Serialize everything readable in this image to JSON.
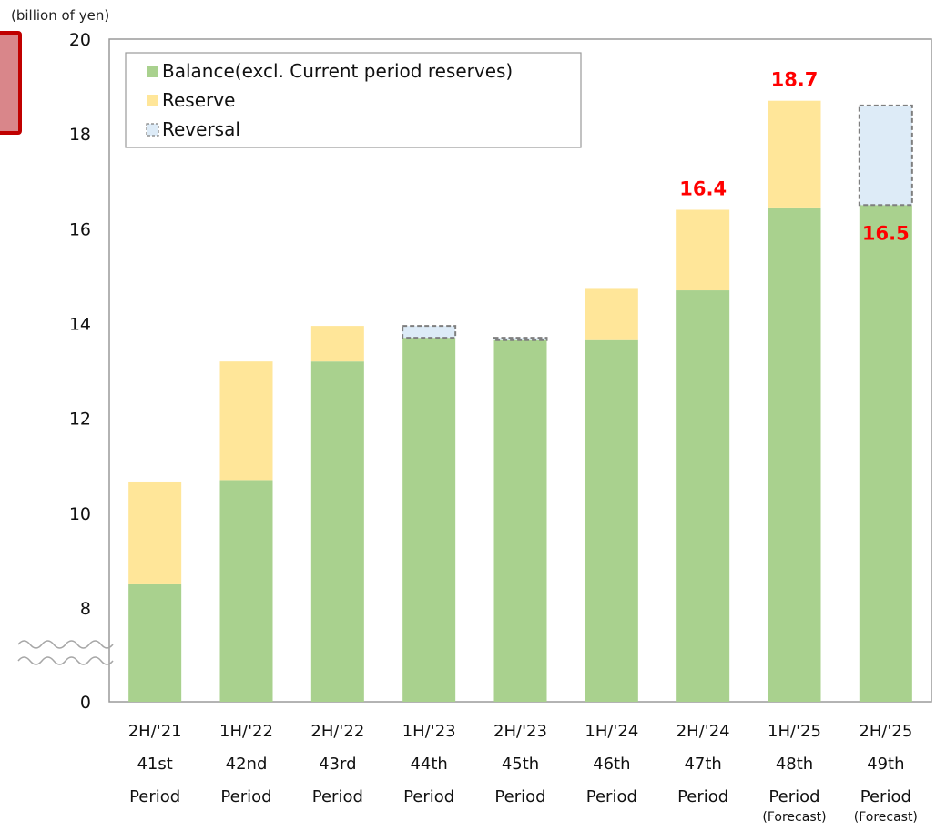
{
  "unit_label": "(billion of yen)",
  "chart_data": {
    "type": "bar",
    "stacked": true,
    "categories": [
      [
        "2H/'21",
        "41st",
        "Period"
      ],
      [
        "1H/'22",
        "42nd",
        "Period"
      ],
      [
        "2H/'22",
        "43rd",
        "Period"
      ],
      [
        "1H/'23",
        "44th",
        "Period"
      ],
      [
        "2H/'23",
        "45th",
        "Period"
      ],
      [
        "1H/'24",
        "46th",
        "Period"
      ],
      [
        "2H/'24",
        "47th",
        "Period"
      ],
      [
        "1H/'25",
        "48th",
        "Period"
      ],
      [
        "2H/'25",
        "49th",
        "Period"
      ]
    ],
    "category_notes": [
      "",
      "",
      "",
      "",
      "",
      "",
      "",
      "(Forecast)",
      "(Forecast)"
    ],
    "series": [
      {
        "name": "Balance(excl. Current period reserves)",
        "color": "#a9d18e",
        "values": [
          8.5,
          10.7,
          13.2,
          13.7,
          13.65,
          13.65,
          14.7,
          16.45,
          16.5
        ]
      },
      {
        "name": "Reserve",
        "color": "#ffe699",
        "values": [
          2.15,
          2.5,
          0.75,
          0,
          0,
          1.1,
          1.7,
          2.25,
          0
        ]
      },
      {
        "name": "Reversal",
        "color": "#ddebf7",
        "border": "dashed-gray",
        "values": [
          0,
          0,
          0,
          0.25,
          0.05,
          0,
          0,
          0,
          2.1
        ]
      }
    ],
    "total_labels": [
      {
        "index": 6,
        "text": "16.4",
        "position": "above"
      },
      {
        "index": 7,
        "text": "18.7",
        "position": "above"
      },
      {
        "index": 8,
        "text": "16.5",
        "position": "below-balance-top"
      }
    ],
    "y_ticks": [
      0,
      8,
      10,
      12,
      14,
      16,
      18,
      20
    ],
    "ylim": [
      0,
      20
    ],
    "axis_break": {
      "between": [
        0,
        8
      ]
    },
    "legend": "top-left-inside",
    "grid": false,
    "title": "",
    "xlabel": "",
    "ylabel": ""
  }
}
